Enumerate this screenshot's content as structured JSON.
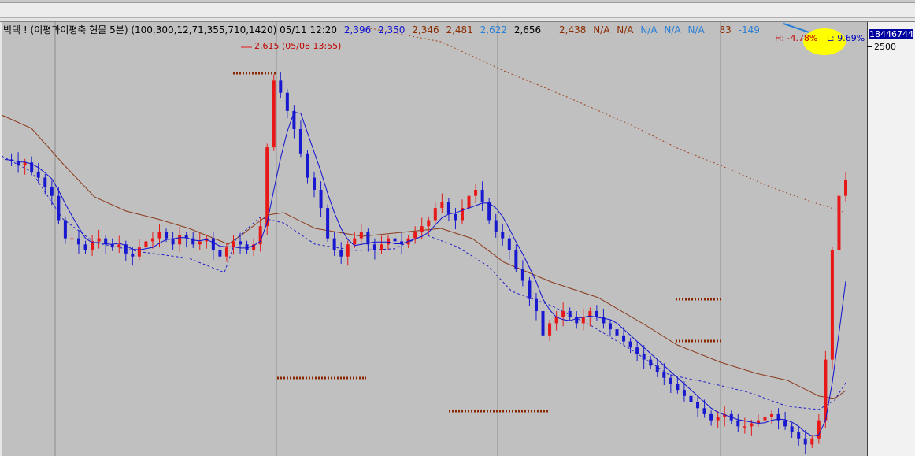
{
  "header": {
    "title": "빅텍 ! (이평과이평축 현물 5분) (100,300,12,71,355,710,1420) 05/11 12:20",
    "ma1": "2,396",
    "ma2": "2,350",
    "ma3": "2,346",
    "ma4": "2,481",
    "ma5": "2,622",
    "ma6": "2,656",
    "ma7": "2,438",
    "ma8": "N/A",
    "ma9": "N/A",
    "ma10": "N/A",
    "ma11": "N/A",
    "ma12": "N/A",
    "ma13": "83",
    "ma14": "-149"
  },
  "annotations": {
    "peak": "2,615 (05/08 13:55)",
    "high": "H: -4.78%",
    "low": "L: 9.69%"
  },
  "axis": {
    "current_price": "18446744",
    "tick_2500": "2500"
  },
  "colors": {
    "up": "#e81818",
    "down": "#1818d0",
    "ma_short": "#1010d0",
    "ma_mid": "#2020c8",
    "ma_long": "#8b3a1a",
    "ma_longest": "#a0401a",
    "dots": "#8b2500",
    "highlight": "#ffff00"
  },
  "chart_data": {
    "type": "candlestick",
    "title": "빅텍 ! (이평과이평축 현물 5분)",
    "y_axis_ticks": [
      2500
    ],
    "peak": {
      "value": 2615,
      "time": "05/08 13:55"
    },
    "closes": [
      2430,
      2428,
      2420,
      2425,
      2410,
      2400,
      2385,
      2370,
      2330,
      2300,
      2300,
      2290,
      2280,
      2295,
      2300,
      2290,
      2285,
      2290,
      2275,
      2270,
      2285,
      2295,
      2300,
      2310,
      2300,
      2290,
      2305,
      2300,
      2290,
      2295,
      2300,
      2280,
      2270,
      2285,
      2295,
      2290,
      2280,
      2290,
      2320,
      2450,
      2560,
      2540,
      2510,
      2480,
      2440,
      2400,
      2380,
      2350,
      2300,
      2280,
      2270,
      2290,
      2300,
      2310,
      2290,
      2280,
      2290,
      2300,
      2295,
      2290,
      2300,
      2310,
      2320,
      2330,
      2350,
      2360,
      2340,
      2330,
      2350,
      2370,
      2380,
      2360,
      2330,
      2310,
      2300,
      2280,
      2250,
      2230,
      2200,
      2180,
      2140,
      2160,
      2170,
      2180,
      2170,
      2160,
      2170,
      2180,
      2170,
      2160,
      2150,
      2140,
      2130,
      2120,
      2110,
      2100,
      2090,
      2080,
      2070,
      2060,
      2050,
      2040,
      2030,
      2020,
      2010,
      2000,
      2005,
      2010,
      2000,
      1990,
      1990,
      1995,
      2000,
      2005,
      2010,
      2000,
      1990,
      1980,
      1970,
      1960,
      1970,
      2000,
      2100,
      2280,
      2370,
      2396
    ]
  }
}
